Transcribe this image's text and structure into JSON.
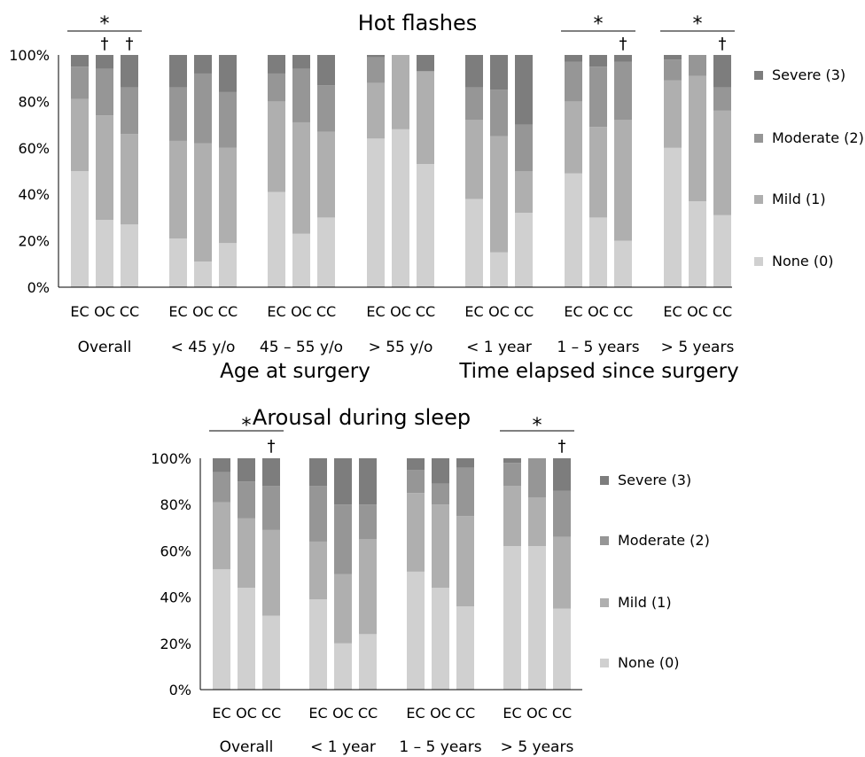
{
  "chart_data": [
    {
      "type": "bar",
      "stacked": true,
      "title": "Hot flashes",
      "y_ticks": [
        "0%",
        "20%",
        "40%",
        "60%",
        "80%",
        "100%"
      ],
      "ylim": [
        0,
        100
      ],
      "bar_labels": [
        "EC",
        "OC",
        "CC"
      ],
      "group_labels": [
        "Overall",
        "< 45 y/o",
        "45 – 55 y/o",
        "> 55 y/o",
        "< 1 year",
        "1 – 5 years",
        "> 5 years"
      ],
      "group_headers": [
        {
          "label": "Age at surgery",
          "groups": [
            1,
            3
          ]
        },
        {
          "label": "Time elapsed since surgery",
          "groups": [
            4,
            6
          ]
        }
      ],
      "legend": [
        "Severe (3)",
        "Moderate (2)",
        "Mild (1)",
        "None (0)"
      ],
      "legend_position": "right",
      "significance": [
        {
          "group": 0,
          "star": "*",
          "daggers": [
            1,
            2
          ]
        },
        {
          "group": 5,
          "star": "*",
          "daggers": [
            2
          ]
        },
        {
          "group": 6,
          "star": "*",
          "daggers": [
            2
          ]
        }
      ],
      "groups": [
        {
          "bars": [
            {
              "none": 50,
              "mild": 31,
              "moderate": 14,
              "severe": 5
            },
            {
              "none": 29,
              "mild": 45,
              "moderate": 20,
              "severe": 6
            },
            {
              "none": 27,
              "mild": 39,
              "moderate": 20,
              "severe": 14
            }
          ]
        },
        {
          "bars": [
            {
              "none": 21,
              "mild": 42,
              "moderate": 23,
              "severe": 14
            },
            {
              "none": 11,
              "mild": 51,
              "moderate": 30,
              "severe": 8
            },
            {
              "none": 19,
              "mild": 41,
              "moderate": 24,
              "severe": 16
            }
          ]
        },
        {
          "bars": [
            {
              "none": 41,
              "mild": 39,
              "moderate": 12,
              "severe": 8
            },
            {
              "none": 23,
              "mild": 48,
              "moderate": 23,
              "severe": 6
            },
            {
              "none": 30,
              "mild": 37,
              "moderate": 20,
              "severe": 13
            }
          ]
        },
        {
          "bars": [
            {
              "none": 64,
              "mild": 24,
              "moderate": 11,
              "severe": 1
            },
            {
              "none": 68,
              "mild": 32,
              "moderate": 0,
              "severe": 0
            },
            {
              "none": 53,
              "mild": 40,
              "moderate": 0,
              "severe": 7
            }
          ]
        },
        {
          "bars": [
            {
              "none": 38,
              "mild": 34,
              "moderate": 14,
              "severe": 14
            },
            {
              "none": 15,
              "mild": 50,
              "moderate": 20,
              "severe": 15
            },
            {
              "none": 32,
              "mild": 18,
              "moderate": 20,
              "severe": 30
            }
          ]
        },
        {
          "bars": [
            {
              "none": 49,
              "mild": 31,
              "moderate": 17,
              "severe": 3
            },
            {
              "none": 30,
              "mild": 39,
              "moderate": 26,
              "severe": 5
            },
            {
              "none": 20,
              "mild": 52,
              "moderate": 25,
              "severe": 3
            }
          ]
        },
        {
          "bars": [
            {
              "none": 60,
              "mild": 29,
              "moderate": 9,
              "severe": 2
            },
            {
              "none": 37,
              "mild": 54,
              "moderate": 9,
              "severe": 0
            },
            {
              "none": 31,
              "mild": 45,
              "moderate": 10,
              "severe": 14
            }
          ]
        }
      ]
    },
    {
      "type": "bar",
      "stacked": true,
      "title": "Arousal during sleep",
      "y_ticks": [
        "0%",
        "20%",
        "40%",
        "60%",
        "80%",
        "100%"
      ],
      "ylim": [
        0,
        100
      ],
      "bar_labels": [
        "EC",
        "OC",
        "CC"
      ],
      "group_labels": [
        "Overall",
        "< 1 year",
        "1 – 5 years",
        "> 5 years"
      ],
      "group_headers": [],
      "legend": [
        "Severe (3)",
        "Moderate (2)",
        "Mild (1)",
        "None (0)"
      ],
      "legend_position": "right",
      "significance": [
        {
          "group": 0,
          "star": "*",
          "daggers": [
            2
          ]
        },
        {
          "group": 3,
          "star": "*",
          "daggers": [
            2
          ]
        }
      ],
      "groups": [
        {
          "bars": [
            {
              "none": 52,
              "mild": 29,
              "moderate": 13,
              "severe": 6
            },
            {
              "none": 44,
              "mild": 30,
              "moderate": 16,
              "severe": 10
            },
            {
              "none": 32,
              "mild": 37,
              "moderate": 19,
              "severe": 12
            }
          ]
        },
        {
          "bars": [
            {
              "none": 39,
              "mild": 25,
              "moderate": 24,
              "severe": 12
            },
            {
              "none": 20,
              "mild": 30,
              "moderate": 30,
              "severe": 20
            },
            {
              "none": 24,
              "mild": 41,
              "moderate": 15,
              "severe": 20
            }
          ]
        },
        {
          "bars": [
            {
              "none": 51,
              "mild": 34,
              "moderate": 10,
              "severe": 5
            },
            {
              "none": 44,
              "mild": 36,
              "moderate": 9,
              "severe": 11
            },
            {
              "none": 36,
              "mild": 39,
              "moderate": 21,
              "severe": 4
            }
          ]
        },
        {
          "bars": [
            {
              "none": 62,
              "mild": 26,
              "moderate": 10,
              "severe": 2
            },
            {
              "none": 62,
              "mild": 21,
              "moderate": 17,
              "severe": 0
            },
            {
              "none": 35,
              "mild": 31,
              "moderate": 20,
              "severe": 14
            }
          ]
        }
      ]
    }
  ],
  "colors": {
    "none": "#d0d0d0",
    "mild": "#afafaf",
    "moderate": "#969696",
    "severe": "#7d7d7d"
  }
}
